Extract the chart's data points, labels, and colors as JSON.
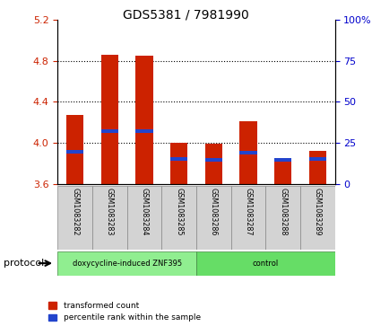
{
  "title": "GDS5381 / 7981990",
  "samples": [
    "GSM1083282",
    "GSM1083283",
    "GSM1083284",
    "GSM1083285",
    "GSM1083286",
    "GSM1083287",
    "GSM1083288",
    "GSM1083289"
  ],
  "red_values": [
    4.27,
    4.86,
    4.85,
    4.0,
    3.99,
    4.21,
    3.84,
    3.92
  ],
  "blue_values": [
    3.9,
    4.1,
    4.1,
    3.83,
    3.82,
    3.89,
    3.82,
    3.83
  ],
  "y_min": 3.6,
  "y_max": 5.2,
  "y_ticks_left": [
    3.6,
    4.0,
    4.4,
    4.8,
    5.2
  ],
  "y_ticks_right": [
    0,
    25,
    50,
    75,
    100
  ],
  "groups": [
    {
      "label": "doxycycline-induced ZNF395",
      "start": 0,
      "end": 4,
      "color": "#90ee90"
    },
    {
      "label": "control",
      "start": 4,
      "end": 8,
      "color": "#66dd66"
    }
  ],
  "protocol_label": "protocol",
  "legend_red": "transformed count",
  "legend_blue": "percentile rank within the sample",
  "bar_width": 0.5,
  "red_color": "#cc2200",
  "blue_color": "#2244cc",
  "tick_color_left": "#cc2200",
  "tick_color_right": "#0000cc",
  "group_bg": "#d3d3d3",
  "blue_bar_height": 0.035,
  "dotted_lines": [
    4.0,
    4.4,
    4.8
  ]
}
